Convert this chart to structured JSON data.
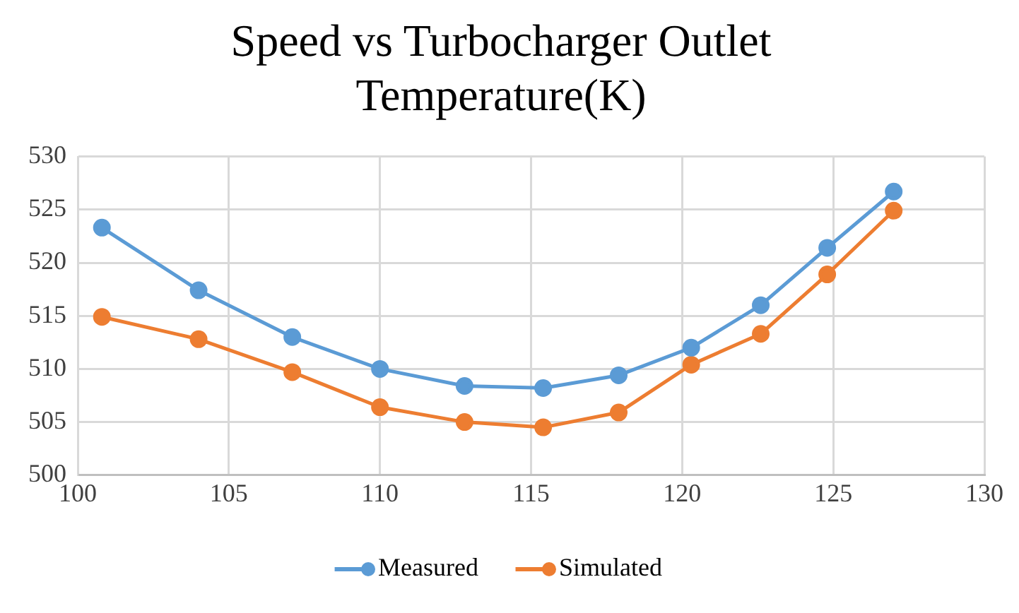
{
  "chart_data": {
    "type": "line",
    "title": "Speed vs Turbocharger Outlet Temperature(K)",
    "x": [
      100.8,
      104.0,
      107.1,
      110.0,
      112.8,
      115.4,
      117.9,
      120.3,
      122.6,
      124.8,
      127.0
    ],
    "series": [
      {
        "name": "Measured",
        "color": "#5b9bd5",
        "values": [
          523.3,
          517.4,
          513.0,
          510.0,
          508.4,
          508.2,
          509.4,
          512.0,
          516.0,
          521.4,
          526.7
        ]
      },
      {
        "name": "Simulated",
        "color": "#ed7d31",
        "values": [
          514.9,
          512.8,
          509.7,
          506.4,
          505.0,
          504.5,
          505.9,
          510.4,
          513.3,
          518.9,
          524.9
        ]
      }
    ],
    "xlim": [
      100,
      130
    ],
    "xticks": [
      100,
      105,
      110,
      115,
      120,
      125,
      130
    ],
    "ylim": [
      500,
      530
    ],
    "yticks": [
      500,
      505,
      510,
      515,
      520,
      525,
      530
    ],
    "grid": true,
    "legend": "bottom",
    "marker": "circle",
    "line_style": "solid"
  }
}
